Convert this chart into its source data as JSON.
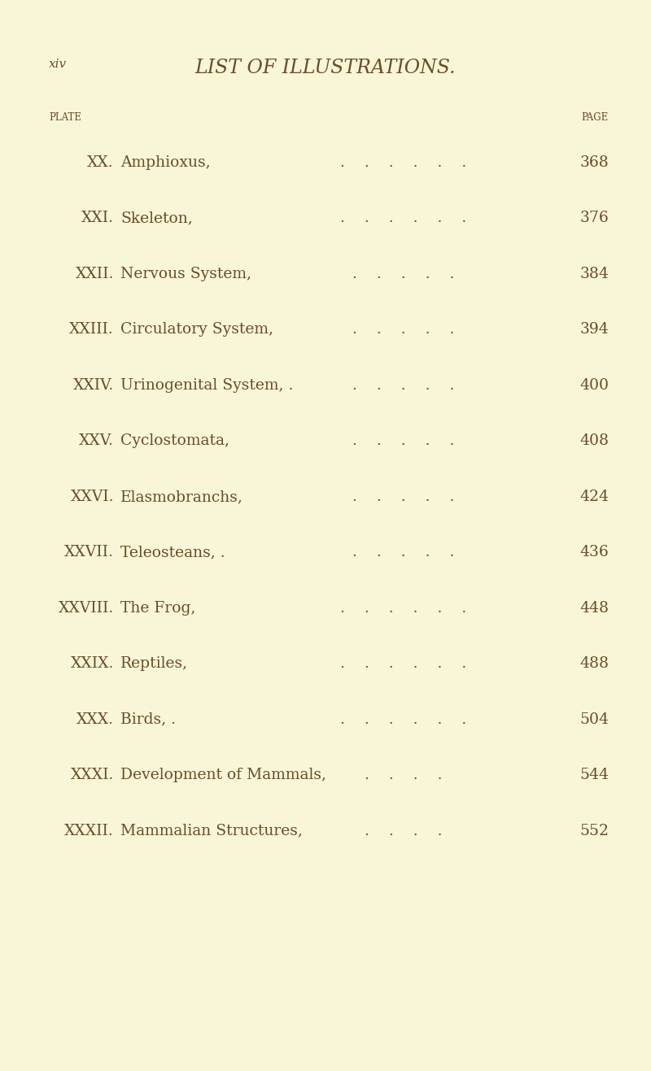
{
  "background_color": "#f9f6d8",
  "page_label": "xiv",
  "title": "LIST OF ILLUSTRATIONS.",
  "col_header_left": "PLATE",
  "col_header_right": "PAGE",
  "entries": [
    {
      "plate": "XX.",
      "title": "Amphioxus,",
      "dots": ".    .    .    .    .    .",
      "page": "368"
    },
    {
      "plate": "XXI.",
      "title": "Skeleton,",
      "dots": ".    .    .    .    .    .",
      "page": "376"
    },
    {
      "plate": "XXII.",
      "title": "Nervous System,",
      "dots": ".    .    .    .    .",
      "page": "384"
    },
    {
      "plate": "XXIII.",
      "title": "Circulatory System,",
      "dots": ".    .    .    .    .",
      "page": "394"
    },
    {
      "plate": "XXIV.",
      "title": "Urinogenital System, .",
      "dots": ".    .    .    .    .",
      "page": "400"
    },
    {
      "plate": "XXV.",
      "title": "Cyclostomata,",
      "dots": ".    .    .    .    .",
      "page": "408"
    },
    {
      "plate": "XXVI.",
      "title": "Elasmobranchs,",
      "dots": ".    .    .    .    .",
      "page": "424"
    },
    {
      "plate": "XXVII.",
      "title": "Teleosteans, .",
      "dots": ".    .    .    .    .",
      "page": "436"
    },
    {
      "plate": "XXVIII.",
      "title": "The Frog,",
      "dots": ".    .    .    .    .    .",
      "page": "448"
    },
    {
      "plate": "XXIX.",
      "title": "Reptiles,",
      "dots": ".    .    .    .    .    .",
      "page": "488"
    },
    {
      "plate": "XXX.",
      "title": "Birds, .",
      "dots": ".    .    .    .    .    .",
      "page": "504"
    },
    {
      "plate": "XXXI.",
      "title": "Development of Mammals,",
      "dots": ".    .    .    .",
      "page": "544"
    },
    {
      "plate": "XXXII.",
      "title": "Mammalian Structures,",
      "dots": ".    .    .    .",
      "page": "552"
    }
  ],
  "text_color": "#6b4c28",
  "title_fontsize": 17,
  "header_fontsize": 8.5,
  "entry_fontsize": 13.5,
  "page_label_fontsize": 11
}
